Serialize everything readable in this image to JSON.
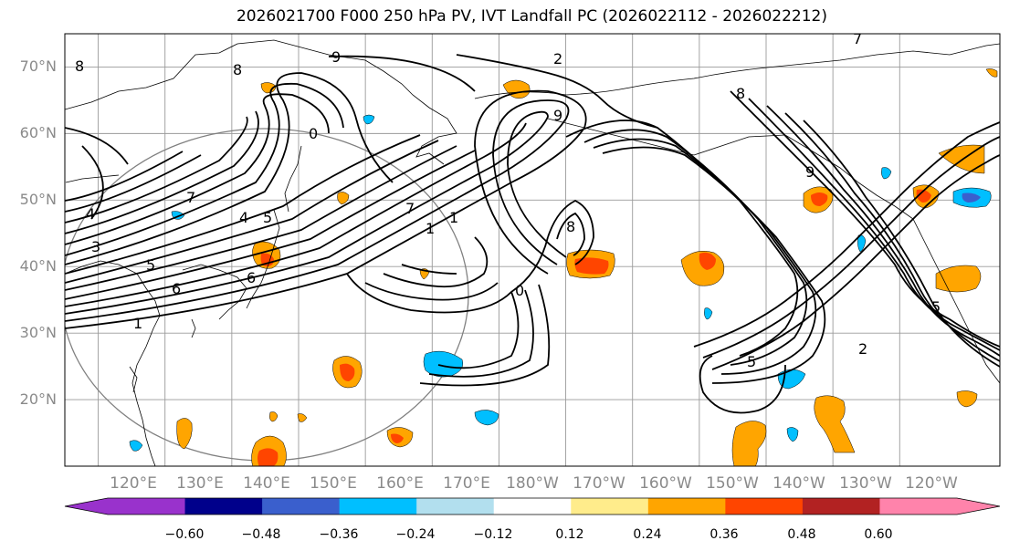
{
  "title": "2026021700 F000 250 hPa PV, IVT Landfall PC (2026022112 - 2026022212)",
  "map": {
    "lat_labels": [
      "70°N",
      "60°N",
      "50°N",
      "40°N",
      "30°N",
      "20°N"
    ],
    "lat_values": [
      70,
      60,
      50,
      40,
      30,
      20
    ],
    "lon_labels": [
      "120°E",
      "130°E",
      "140°E",
      "150°E",
      "160°E",
      "170°E",
      "180°W",
      "170°W",
      "160°W",
      "150°W",
      "140°W",
      "130°W",
      "120°W"
    ],
    "lon_values": [
      120,
      130,
      140,
      150,
      160,
      170,
      180,
      190,
      200,
      210,
      220,
      230,
      240
    ],
    "extent": {
      "lon_min": 115,
      "lon_max": 255,
      "lat_min": 10,
      "lat_max": 75
    },
    "contour_labels": [
      "8",
      "9",
      "2",
      "9",
      "8",
      "0",
      "7",
      "4",
      "3",
      "5",
      "4",
      "5",
      "6",
      "6",
      "1",
      "7",
      "1",
      "1",
      "0",
      "8",
      "9",
      "8",
      "5",
      "2",
      "5",
      "7"
    ]
  },
  "colorbar": {
    "ticks": [
      "−0.60",
      "−0.48",
      "−0.36",
      "−0.24",
      "−0.12",
      "0.12",
      "0.24",
      "0.36",
      "0.48",
      "0.60"
    ],
    "colors": [
      "#9932cc",
      "#00008b",
      "#3a5fcd",
      "#00bfff",
      "#b2dfee",
      "#ffffff",
      "#ffec8b",
      "#ffa500",
      "#ff4500",
      "#b22222",
      "#ff83ab"
    ]
  }
}
